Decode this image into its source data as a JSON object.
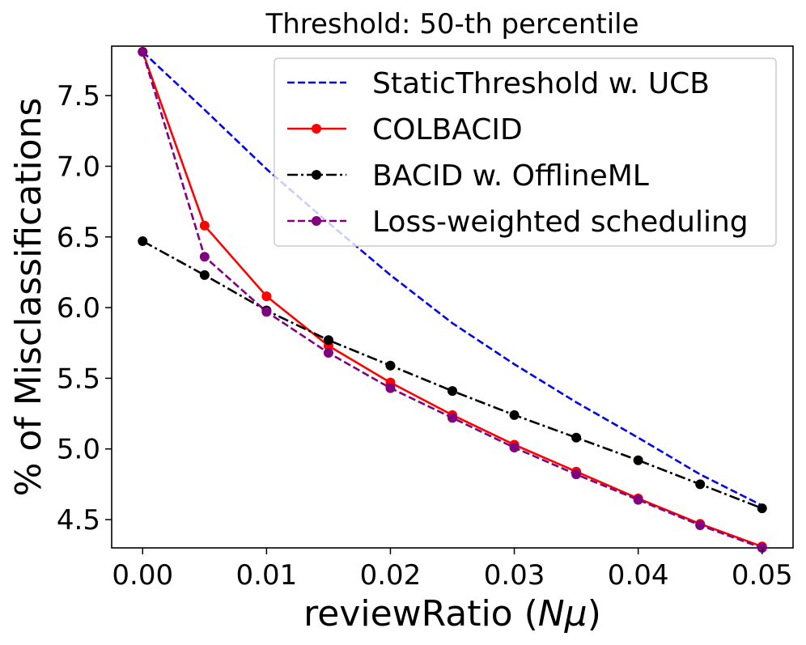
{
  "chart_data": {
    "type": "line",
    "title": "Threshold: 50-th percentile",
    "xlabel": "reviewRatio (",
    "xlabel_math": "Nμ",
    "xlabel_close": ")",
    "ylabel": "% of Misclassifications",
    "xlim": [
      -0.0025,
      0.0525
    ],
    "ylim": [
      4.3,
      7.85
    ],
    "xticks": [
      0.0,
      0.01,
      0.02,
      0.03,
      0.04,
      0.05
    ],
    "xtick_labels": [
      "0.00",
      "0.01",
      "0.02",
      "0.03",
      "0.04",
      "0.05"
    ],
    "yticks": [
      4.5,
      5.0,
      5.5,
      6.0,
      6.5,
      7.0,
      7.5
    ],
    "ytick_labels": [
      "4.5",
      "5.0",
      "5.5",
      "6.0",
      "6.5",
      "7.0",
      "7.5"
    ],
    "legend_position": "top-right",
    "series": [
      {
        "name": "StaticThreshold w. UCB",
        "color": "#0000ee",
        "dash": "dashed",
        "marker": false,
        "x": [
          0.0,
          0.005,
          0.01,
          0.015,
          0.02,
          0.025,
          0.03,
          0.035,
          0.04,
          0.045,
          0.05
        ],
        "y": [
          7.81,
          7.4,
          6.98,
          6.6,
          6.23,
          5.89,
          5.6,
          5.33,
          5.08,
          4.82,
          4.6
        ]
      },
      {
        "name": "COLBACID",
        "color": "#ff0000",
        "dash": "solid",
        "marker": true,
        "x": [
          0.0,
          0.005,
          0.01,
          0.015,
          0.02,
          0.025,
          0.03,
          0.035,
          0.04,
          0.045,
          0.05
        ],
        "y": [
          7.81,
          6.58,
          6.08,
          5.73,
          5.47,
          5.24,
          5.03,
          4.84,
          4.65,
          4.47,
          4.31
        ]
      },
      {
        "name": "BACID w. OfflineML",
        "color": "#000000",
        "dash": "dashdot",
        "marker": true,
        "x": [
          0.0,
          0.005,
          0.01,
          0.015,
          0.02,
          0.025,
          0.03,
          0.035,
          0.04,
          0.045,
          0.05
        ],
        "y": [
          6.47,
          6.23,
          5.98,
          5.77,
          5.59,
          5.41,
          5.24,
          5.08,
          4.92,
          4.75,
          4.58
        ]
      },
      {
        "name": "Loss-weighted scheduling",
        "color": "#800080",
        "dash": "dashed",
        "marker": true,
        "x": [
          0.0,
          0.005,
          0.01,
          0.015,
          0.02,
          0.025,
          0.03,
          0.035,
          0.04,
          0.045,
          0.05
        ],
        "y": [
          7.81,
          6.36,
          5.97,
          5.68,
          5.43,
          5.22,
          5.01,
          4.82,
          4.64,
          4.46,
          4.3
        ]
      }
    ]
  }
}
